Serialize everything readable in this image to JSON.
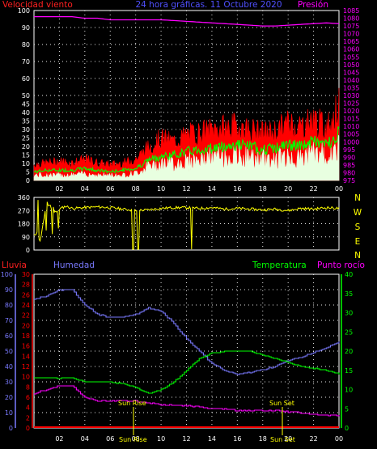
{
  "title": "24 hora gráficas.  11 Octubre 2020",
  "colors": {
    "background": "#000000",
    "frame": "#ffffff",
    "grid": "#e6e6e6",
    "wind_avg": "#ff0000",
    "wind_gust": "#ff0000",
    "wind_mid": "#00ff00",
    "wind_min": "#e8ffe0",
    "pressure": "#ff00ff",
    "direction": "#ffff00",
    "rain": "#ff0000",
    "humidity": "#7a7aff",
    "temperature": "#00ff00",
    "dewpoint": "#ff00ff",
    "sun_marker": "#ffff00",
    "compass": "#ffff00"
  },
  "x_ticks": [
    "02",
    "04",
    "06",
    "08",
    "10",
    "12",
    "14",
    "16",
    "18",
    "20",
    "22",
    "00"
  ],
  "compass": [
    "N",
    "W",
    "S",
    "E",
    "N"
  ],
  "sun": {
    "rise_label": "Sun Rise",
    "set_label": "Sun Set",
    "rise_time": "Sun Rise",
    "set_time": "Sun Set"
  },
  "chart_data": [
    {
      "type": "line",
      "title": "24 hora gráficas.  11 Octubre 2020",
      "ylabel": "Velocidad viento",
      "y2label": "Presión",
      "xlim": [
        0,
        24
      ],
      "ylim": [
        0,
        100
      ],
      "y2lim": [
        975,
        1085
      ],
      "yticks": [
        0,
        5,
        10,
        15,
        20,
        25,
        30,
        35,
        40,
        45,
        50,
        60,
        70,
        80,
        90,
        100
      ],
      "y2ticks": [
        975,
        980,
        985,
        990,
        995,
        1000,
        1005,
        1010,
        1015,
        1020,
        1025,
        1030,
        1035,
        1040,
        1045,
        1050,
        1055,
        1060,
        1065,
        1070,
        1075,
        1080,
        1085
      ],
      "x": [
        0,
        1,
        2,
        3,
        4,
        5,
        6,
        7,
        8,
        9,
        10,
        11,
        12,
        13,
        14,
        15,
        16,
        17,
        18,
        19,
        20,
        21,
        22,
        23,
        24
      ],
      "series": [
        {
          "role": "pressure",
          "axis": "right",
          "values": [
            1081,
            1081,
            1081,
            1081,
            1080,
            1080,
            1079,
            1079,
            1079,
            1079,
            1079,
            1078.5,
            1078,
            1077.5,
            1077,
            1076.5,
            1076,
            1075.5,
            1075,
            1075,
            1075.5,
            1076,
            1076.5,
            1077,
            1076.5
          ]
        },
        {
          "role": "gust",
          "axis": "left",
          "values": [
            9,
            10,
            11,
            10,
            12,
            10,
            9,
            10,
            12,
            19,
            24,
            22,
            26,
            27,
            29,
            30,
            31,
            29,
            27,
            28,
            33,
            31,
            35,
            30,
            42
          ]
        },
        {
          "role": "wind_mid",
          "axis": "left",
          "values": [
            5,
            6,
            6,
            6,
            7,
            6,
            5,
            6,
            7,
            12,
            14,
            15,
            17,
            18,
            19,
            20,
            21,
            20,
            18,
            19,
            21,
            20,
            23,
            21,
            28
          ]
        },
        {
          "role": "wind_min",
          "axis": "left",
          "values": [
            3,
            3,
            3,
            3,
            4,
            3,
            3,
            3,
            4,
            8,
            10,
            10,
            11,
            12,
            13,
            14,
            14,
            13,
            12,
            12,
            14,
            13,
            16,
            14,
            18
          ]
        }
      ]
    },
    {
      "type": "line",
      "title": "",
      "ylim": [
        0,
        360
      ],
      "yticks": [
        0,
        90,
        180,
        270,
        360
      ],
      "x": [
        0,
        0.5,
        1,
        1.5,
        2,
        2.5,
        3,
        4,
        5,
        6,
        7,
        8,
        9,
        10,
        11,
        12,
        13,
        14,
        15,
        16,
        17,
        18,
        19,
        20,
        21,
        22,
        23,
        24
      ],
      "series": [
        {
          "role": "direction",
          "values": [
            120,
            60,
            330,
            250,
            280,
            300,
            285,
            290,
            295,
            290,
            280,
            270,
            275,
            285,
            290,
            290,
            285,
            290,
            280,
            285,
            280,
            275,
            280,
            270,
            285,
            280,
            290,
            285
          ]
        }
      ]
    },
    {
      "type": "line",
      "title": "",
      "ylim_humidity": [
        0,
        100
      ],
      "ylim_rain": [
        0,
        30
      ],
      "ylim_temperature": [
        0,
        40
      ],
      "yticks_humidity": [
        0,
        10,
        20,
        30,
        40,
        50,
        60,
        70,
        80,
        90,
        100
      ],
      "yticks_rain": [
        0,
        2,
        4,
        6,
        8,
        10,
        12,
        14,
        16,
        18,
        20,
        22,
        24,
        26,
        28,
        30
      ],
      "yticks_temperature": [
        0,
        5,
        10,
        15,
        20,
        25,
        30,
        35,
        40
      ],
      "labels": {
        "rain": "Lluvia",
        "humidity": "Humedad",
        "temperature": "Temperatura",
        "dewpoint": "Punto rocío"
      },
      "x": [
        0,
        1,
        2,
        3,
        4,
        5,
        6,
        7,
        8,
        9,
        10,
        11,
        12,
        13,
        14,
        15,
        16,
        17,
        18,
        19,
        20,
        21,
        22,
        23,
        24
      ],
      "series": [
        {
          "role": "rain",
          "axis": "rain",
          "values": [
            0,
            0,
            0,
            0,
            0,
            0,
            0,
            0,
            0,
            0,
            0,
            0,
            0,
            0,
            0,
            0,
            0,
            0,
            0,
            0,
            0,
            0,
            0,
            0,
            0
          ]
        },
        {
          "role": "humidity",
          "axis": "humidity",
          "values": [
            84,
            86,
            90,
            90,
            80,
            74,
            72,
            72,
            74,
            78,
            76,
            68,
            58,
            50,
            42,
            37,
            35,
            36,
            38,
            40,
            44,
            46,
            49,
            52,
            56
          ]
        },
        {
          "role": "temperature",
          "axis": "temperature",
          "values": [
            13,
            13,
            13,
            13,
            12,
            12,
            12,
            11.5,
            10.5,
            9,
            10,
            12,
            15,
            18,
            19.5,
            20,
            20,
            20,
            19,
            18,
            17,
            16,
            15.5,
            15,
            14
          ]
        },
        {
          "role": "dewpoint",
          "axis": "temperature",
          "values": [
            9,
            10,
            11,
            11,
            8,
            7,
            7,
            7,
            7,
            6.5,
            6,
            6,
            5.8,
            5.5,
            5,
            5,
            4.5,
            4.5,
            4.5,
            4.5,
            4.2,
            4,
            3.5,
            3.3,
            3.3
          ]
        }
      ]
    }
  ]
}
